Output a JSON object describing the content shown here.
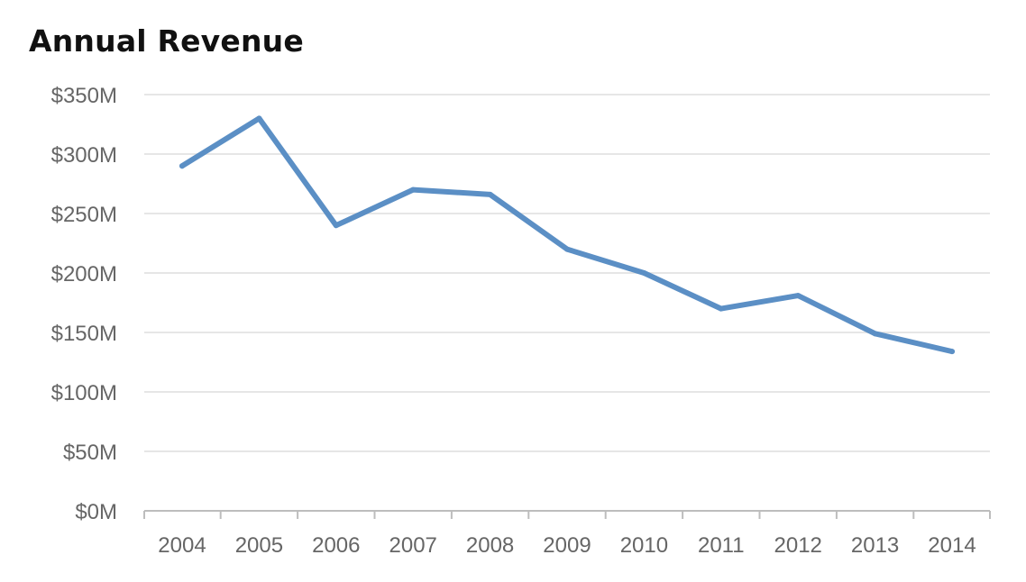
{
  "chart_data": {
    "type": "line",
    "title": "Annual Revenue",
    "xlabel": "",
    "ylabel": "",
    "categories": [
      "2004",
      "2005",
      "2006",
      "2007",
      "2008",
      "2009",
      "2010",
      "2011",
      "2012",
      "2013",
      "2014"
    ],
    "series": [
      {
        "values": [
          290,
          330,
          240,
          270,
          266,
          220,
          200,
          170,
          181,
          149,
          134
        ]
      }
    ],
    "y_ticks": [
      "$0M",
      "$50M",
      "$100M",
      "$150M",
      "$200M",
      "$250M",
      "$300M",
      "$350M"
    ],
    "ylim": [
      0,
      350
    ],
    "y_tick_step": 50,
    "grid": true,
    "legend": "none",
    "colors": {
      "line": "#5b8fc5",
      "grid": "#e6e6e6",
      "axis": "#bdbdbd",
      "tick_text": "#666666",
      "title": "#111111"
    }
  }
}
